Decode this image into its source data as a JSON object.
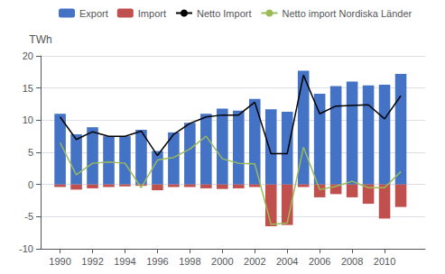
{
  "chart_data": {
    "type": "bar",
    "ylabel": "TWh",
    "x": [
      1990,
      1991,
      1992,
      1993,
      1994,
      1995,
      1996,
      1997,
      1998,
      1999,
      2000,
      2001,
      2002,
      2003,
      2004,
      2005,
      2006,
      2007,
      2008,
      2009,
      2010,
      2011
    ],
    "series": [
      {
        "name": "Export",
        "type": "bar",
        "color": "#4472C4",
        "values": [
          11.0,
          7.8,
          8.9,
          7.5,
          7.5,
          8.5,
          5.2,
          8.1,
          9.6,
          11.0,
          11.8,
          11.5,
          13.3,
          11.7,
          11.3,
          17.7,
          14.1,
          15.3,
          16.0,
          15.4,
          15.5,
          17.2
        ]
      },
      {
        "name": "Import",
        "type": "bar",
        "color": "#C0504D",
        "values": [
          -0.4,
          -0.8,
          -0.6,
          -0.4,
          -0.3,
          -0.2,
          -0.9,
          -0.4,
          -0.4,
          -0.6,
          -0.7,
          -0.6,
          -0.4,
          -6.5,
          -6.3,
          -0.4,
          -2.0,
          -1.5,
          -2.0,
          -3.0,
          -5.3,
          -3.5
        ]
      },
      {
        "name": "Netto Import",
        "type": "line",
        "color": "#000000",
        "values": [
          10.5,
          7.0,
          8.2,
          7.5,
          7.5,
          8.3,
          4.5,
          7.8,
          9.5,
          10.5,
          10.8,
          10.8,
          12.8,
          4.8,
          4.8,
          17.0,
          11.0,
          12.2,
          12.3,
          12.4,
          10.2,
          13.8
        ]
      },
      {
        "name": "Netto import Nordiska Länder",
        "type": "line",
        "color": "#9BBB59",
        "values": [
          6.5,
          1.5,
          3.3,
          3.5,
          3.3,
          -0.5,
          3.8,
          4.2,
          5.5,
          7.5,
          4.0,
          3.3,
          3.2,
          -6.2,
          -6.0,
          5.8,
          -0.8,
          -0.3,
          0.5,
          -0.5,
          -0.5,
          2.0
        ]
      }
    ],
    "xlim": [
      1988.8,
      2012.5
    ],
    "xticks": [
      1990,
      1992,
      1994,
      1996,
      1998,
      2000,
      2002,
      2004,
      2006,
      2008,
      2010
    ],
    "ylim": [
      -10,
      20
    ],
    "yticks": [
      -10,
      -5,
      0,
      5,
      10,
      15,
      20
    ],
    "grid": true,
    "legend": "upper left"
  }
}
